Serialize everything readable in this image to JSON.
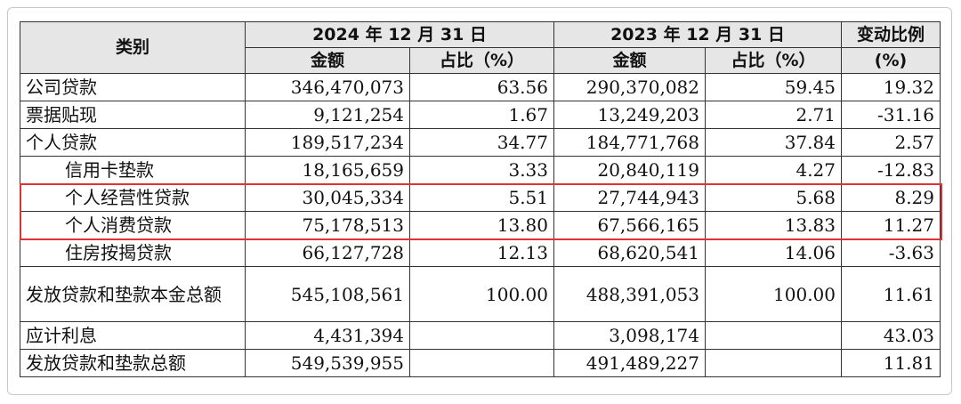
{
  "header": {
    "category": "类别",
    "period_2024": "2024 年 12 月 31 日",
    "period_2023": "2023 年 12 月 31 日",
    "change_ratio": "变动比例",
    "amount": "金额",
    "share_pct": "占比（%）",
    "change_unit": "(%)"
  },
  "rows": [
    {
      "label": "公司贷款",
      "amt_2024": "346,470,073",
      "pct_2024": "63.56",
      "amt_2023": "290,370,082",
      "pct_2023": "59.45",
      "change": "19.32"
    },
    {
      "label": "票据贴现",
      "amt_2024": "9,121,254",
      "pct_2024": "1.67",
      "amt_2023": "13,249,203",
      "pct_2023": "2.71",
      "change": "-31.16"
    },
    {
      "label": "个人贷款",
      "amt_2024": "189,517,234",
      "pct_2024": "34.77",
      "amt_2023": "184,771,768",
      "pct_2023": "37.84",
      "change": "2.57"
    },
    {
      "label": "信用卡垫款",
      "amt_2024": "18,165,659",
      "pct_2024": "3.33",
      "amt_2023": "20,840,119",
      "pct_2023": "4.27",
      "change": "-12.83"
    },
    {
      "label": "个人经营性贷款",
      "amt_2024": "30,045,334",
      "pct_2024": "5.51",
      "amt_2023": "27,744,943",
      "pct_2023": "5.68",
      "change": "8.29"
    },
    {
      "label": "个人消费贷款",
      "amt_2024": "75,178,513",
      "pct_2024": "13.80",
      "amt_2023": "67,566,165",
      "pct_2023": "13.83",
      "change": "11.27"
    },
    {
      "label": "住房按揭贷款",
      "amt_2024": "66,127,728",
      "pct_2024": "12.13",
      "amt_2023": "68,620,541",
      "pct_2023": "14.06",
      "change": "-3.63"
    },
    {
      "label": "发放贷款和垫款本金总额",
      "amt_2024": "545,108,561",
      "pct_2024": "100.00",
      "amt_2023": "488,391,053",
      "pct_2023": "100.00",
      "change": "11.61"
    },
    {
      "label": "应计利息",
      "amt_2024": "4,431,394",
      "pct_2024": "",
      "amt_2023": "3,098,174",
      "pct_2023": "",
      "change": "43.03"
    },
    {
      "label": "发放贷款和垫款总额",
      "amt_2024": "549,539,955",
      "pct_2024": "",
      "amt_2023": "491,489,227",
      "pct_2023": "",
      "change": "11.81"
    }
  ],
  "colors": {
    "header_bg": "#e6e6e6",
    "highlight_border": "#e03232"
  }
}
